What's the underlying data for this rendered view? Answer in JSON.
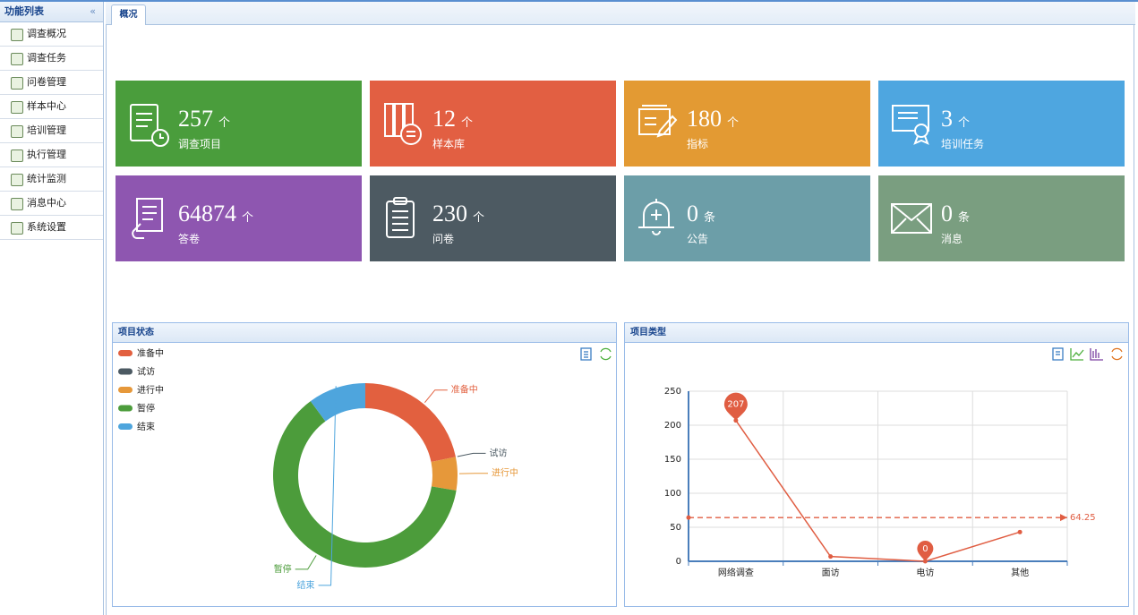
{
  "sidebar": {
    "title": "功能列表",
    "items": [
      "调查概况",
      "调查任务",
      "问卷管理",
      "样本中心",
      "培训管理",
      "执行管理",
      "统计监测",
      "消息中心",
      "系统设置"
    ]
  },
  "tabs": [
    "概况"
  ],
  "tiles": [
    {
      "value": 257,
      "unit": "个",
      "label": "调查项目"
    },
    {
      "value": 12,
      "unit": "个",
      "label": "样本库"
    },
    {
      "value": 180,
      "unit": "个",
      "label": "指标"
    },
    {
      "value": 3,
      "unit": "个",
      "label": "培训任务"
    },
    {
      "value": 64874,
      "unit": "个",
      "label": "答卷"
    },
    {
      "value": 230,
      "unit": "个",
      "label": "问卷"
    },
    {
      "value": 0,
      "unit": "条",
      "label": "公告"
    },
    {
      "value": 0,
      "unit": "条",
      "label": "消息"
    }
  ],
  "panels": [
    {
      "title": "项目状态",
      "chart": {
        "type": "pie",
        "donut": true,
        "series": [
          {
            "name": "准备中",
            "color": "#e2603f",
            "value": 56
          },
          {
            "name": "试访",
            "color": "#4b5962",
            "value": 0
          },
          {
            "name": "进行中",
            "color": "#e6983a",
            "value": 15
          },
          {
            "name": "暂停",
            "color": "#4c9c3b",
            "value": 160
          },
          {
            "name": "结束",
            "color": "#4ea5dd",
            "value": 26
          }
        ]
      }
    },
    {
      "title": "项目类型",
      "chart": {
        "type": "line",
        "categories": [
          "网络调查",
          "面访",
          "电访",
          "其他"
        ],
        "series": [
          {
            "color": "#e05d42",
            "values": [
              207,
              7,
              0,
              43
            ]
          }
        ],
        "average_line": 64.25,
        "ylim": [
          0,
          250
        ],
        "yticks": [
          0,
          50,
          100,
          150,
          200,
          250
        ],
        "grid": true
      }
    }
  ]
}
